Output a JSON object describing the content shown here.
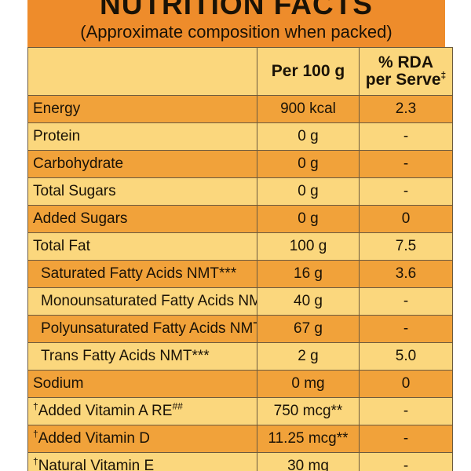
{
  "header": {
    "title": "NUTRITION FACTS",
    "subtitle": "(Approximate composition when packed)"
  },
  "columns": {
    "per_100g": "Per 100 g",
    "rda_line1": "% RDA",
    "rda_line2": "per Serve",
    "rda_mark": "‡"
  },
  "rows": [
    {
      "label": "Energy",
      "value": "900 kcal",
      "rda": "2.3"
    },
    {
      "label": "Protein",
      "value": "0 g",
      "rda": "-"
    },
    {
      "label": "Carbohydrate",
      "value": "0 g",
      "rda": "-"
    },
    {
      "label": "Total Sugars",
      "value": "0 g",
      "rda": "-"
    },
    {
      "label": "Added Sugars",
      "value": "0 g",
      "rda": "0"
    },
    {
      "label": "Total Fat",
      "value": "100 g",
      "rda": "7.5"
    },
    {
      "label": "Saturated Fatty Acids NMT***",
      "value": "16 g",
      "rda": "3.6"
    },
    {
      "label": "Monounsaturated Fatty Acids NMT***",
      "value": "40 g",
      "rda": "-"
    },
    {
      "label": "Polyunsaturated Fatty Acids NMT***",
      "value": "67 g",
      "rda": "-"
    },
    {
      "label": "Trans Fatty Acids NMT***",
      "value": "2 g",
      "rda": "5.0"
    },
    {
      "label": "Sodium",
      "value": "0 mg",
      "rda": "0"
    },
    {
      "mark": "†",
      "label": "Added Vitamin A RE",
      "label_suffix": "##",
      "value": "750 mcg**",
      "rda": "-"
    },
    {
      "mark": "†",
      "label": "Added Vitamin D",
      "value": "11.25 mcg**",
      "rda": "-"
    },
    {
      "mark": "†",
      "label": "Natural Vitamin E",
      "value": "30 mg",
      "rda": "-"
    }
  ],
  "colors": {
    "header_bg": "#ee8c2b",
    "row_light": "#fbd77d",
    "row_dark": "#f1a23a",
    "text": "#1a1206",
    "border": "#6b5a3f"
  }
}
